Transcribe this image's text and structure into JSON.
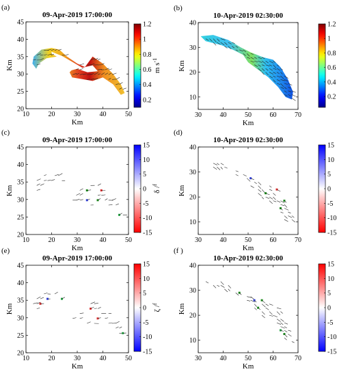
{
  "figure": {
    "panels": [
      {
        "label": "(a)",
        "title": "09-Apr-2019 17:00:00",
        "xlabel": "Km",
        "ylabel": "Km",
        "xlim": [
          10,
          50
        ],
        "ylim": [
          20,
          45
        ],
        "xticks": [
          "10",
          "20",
          "30",
          "40",
          "50"
        ],
        "yticks": [
          "20",
          "25",
          "30",
          "35",
          "40",
          "45"
        ],
        "field": "speed",
        "region": "A"
      },
      {
        "label": "(b)",
        "title": "10-Apr-2019 02:30:00",
        "xlabel": "Km",
        "ylabel": "Km",
        "xlim": [
          30,
          70
        ],
        "ylim": [
          5,
          40
        ],
        "xticks": [
          "30",
          "40",
          "50",
          "60",
          "70"
        ],
        "yticks": [
          "10",
          "20",
          "30",
          "40"
        ],
        "field": "speed",
        "region": "B"
      },
      {
        "label": "(c)",
        "title": "09-Apr-2019 17:00:00",
        "xlabel": "Km",
        "ylabel": "Km",
        "xlim": [
          10,
          50
        ],
        "ylim": [
          20,
          45
        ],
        "xticks": [
          "10",
          "20",
          "30",
          "40",
          "50"
        ],
        "yticks": [
          "20",
          "25",
          "30",
          "35",
          "40",
          "45"
        ],
        "field": "ratio",
        "region": "A"
      },
      {
        "label": "(d)",
        "title": "10-Apr-2019 02:30:00",
        "xlabel": "Km",
        "ylabel": "Km",
        "xlim": [
          30,
          70
        ],
        "ylim": [
          5,
          40
        ],
        "xticks": [
          "30",
          "40",
          "50",
          "60",
          "70"
        ],
        "yticks": [
          "10",
          "20",
          "30",
          "40"
        ],
        "field": "ratio",
        "region": "B"
      },
      {
        "label": "(e)",
        "title": "09-Apr-2019 17:00:00",
        "xlabel": "Km",
        "ylabel": "Km",
        "xlim": [
          10,
          50
        ],
        "ylim": [
          20,
          45
        ],
        "xticks": [
          "10",
          "20",
          "30",
          "40",
          "50"
        ],
        "yticks": [
          "20",
          "25",
          "30",
          "35",
          "40",
          "45"
        ],
        "field": "ratio",
        "region": "A"
      },
      {
        "label": "(f )",
        "title": "10-Apr-2019 02:30:00",
        "xlabel": "Km",
        "ylabel": "Km",
        "xlim": [
          30,
          70
        ],
        "ylim": [
          5,
          40
        ],
        "xticks": [
          "30",
          "40",
          "50",
          "60",
          "70"
        ],
        "yticks": [
          "10",
          "20",
          "30",
          "40"
        ],
        "field": "ratio",
        "region": "B"
      }
    ],
    "colorbars": [
      {
        "panel": "(a)",
        "label": "m s -1",
        "colormap": "jet",
        "range": [
          0.1,
          1.2
        ],
        "ticks": [
          "1.2",
          "1",
          "0.8",
          "0.6",
          "0.4",
          "0.2"
        ]
      },
      {
        "panel": "(b)",
        "label": "m s -1",
        "colormap": "jet",
        "range": [
          0.05,
          1.2
        ],
        "ticks": [
          "1.2",
          "1",
          "0.8",
          "0.6",
          "0.4",
          "0.2"
        ]
      },
      {
        "panel": "(c)",
        "label": "δ / f",
        "colormap": "red-white-blue",
        "range": [
          -15,
          15
        ],
        "ticks": [
          "15",
          "10",
          "5",
          "0",
          "-5",
          "-10",
          "-15"
        ]
      },
      {
        "panel": "(d)",
        "label": "δ / f",
        "colormap": "red-white-blue",
        "range": [
          -15,
          15
        ],
        "ticks": [
          "15",
          "10",
          "5",
          "0",
          "-5",
          "-10",
          "-15"
        ]
      },
      {
        "panel": "(e)",
        "label": "ζ / f",
        "colormap": "blue-white-red",
        "range": [
          -15,
          15
        ],
        "ticks": [
          "15",
          "10",
          "5",
          "0",
          "-5",
          "-10",
          "-15"
        ]
      },
      {
        "panel": "(f )",
        "label": "ζ / f",
        "colormap": "blue-white-red",
        "range": [
          -15,
          15
        ],
        "ticks": [
          "15",
          "10",
          "5",
          "0",
          "-5",
          "-10",
          "-15"
        ]
      }
    ]
  },
  "chart_data": [
    {
      "type": "heatmap",
      "panel": "(a)",
      "title": "09-Apr-2019 17:00:00",
      "xlabel": "Km",
      "ylabel": "Km",
      "xlim": [
        10,
        50
      ],
      "ylim": [
        20,
        45
      ],
      "colorbar": {
        "label": "m s -1",
        "range": [
          0.1,
          1.2
        ]
      },
      "coverage_outline_km": [
        [
          12.5,
          33
        ],
        [
          13,
          35
        ],
        [
          16,
          37
        ],
        [
          20,
          37.5
        ],
        [
          23,
          37
        ],
        [
          26,
          35
        ],
        [
          30,
          33
        ],
        [
          33,
          32
        ],
        [
          36,
          35
        ],
        [
          40,
          33
        ],
        [
          44,
          30
        ],
        [
          47,
          27
        ],
        [
          48.5,
          24.5
        ],
        [
          47,
          24
        ],
        [
          44,
          27
        ],
        [
          40,
          29
        ],
        [
          36,
          28
        ],
        [
          32,
          28.5
        ],
        [
          28,
          29
        ],
        [
          27,
          30.5
        ],
        [
          29,
          32
        ],
        [
          26,
          33.5
        ],
        [
          22,
          35
        ],
        [
          18,
          34.5
        ],
        [
          15,
          33
        ],
        [
          14,
          31.5
        ]
      ],
      "overlay": "current vectors"
    },
    {
      "type": "heatmap",
      "panel": "(b)",
      "title": "10-Apr-2019 02:30:00",
      "xlabel": "Km",
      "ylabel": "Km",
      "xlim": [
        30,
        70
      ],
      "ylim": [
        5,
        40
      ],
      "colorbar": {
        "label": "m s -1",
        "range": [
          0.05,
          1.2
        ]
      },
      "coverage_outline_km": [
        [
          31,
          34.5
        ],
        [
          36,
          35
        ],
        [
          42,
          33
        ],
        [
          47,
          30
        ],
        [
          51,
          28
        ],
        [
          56,
          26
        ],
        [
          60,
          25
        ],
        [
          63,
          22
        ],
        [
          66,
          17
        ],
        [
          68,
          12
        ],
        [
          67.5,
          9
        ],
        [
          65,
          10
        ],
        [
          62,
          14
        ],
        [
          58,
          18
        ],
        [
          54,
          21
        ],
        [
          50,
          24
        ],
        [
          48,
          27
        ],
        [
          44,
          29
        ],
        [
          39,
          31
        ],
        [
          33,
          32.5
        ]
      ],
      "overlay": "current vectors"
    },
    {
      "type": "heatmap",
      "panel": "(c)",
      "title": "09-Apr-2019 17:00:00",
      "xlabel": "Km",
      "ylabel": "Km",
      "xlim": [
        10,
        50
      ],
      "ylim": [
        20,
        45
      ],
      "colorbar": {
        "label": "δ / f",
        "range": [
          -15,
          15
        ]
      },
      "overlay": "current vectors",
      "field_note": "normalized divergence, mostly near zero"
    },
    {
      "type": "heatmap",
      "panel": "(d)",
      "title": "10-Apr-2019 02:30:00",
      "xlabel": "Km",
      "ylabel": "Km",
      "xlim": [
        30,
        70
      ],
      "ylim": [
        5,
        40
      ],
      "colorbar": {
        "label": "δ / f",
        "range": [
          -15,
          15
        ]
      },
      "overlay": "current vectors",
      "field_note": "normalized divergence, mostly near zero"
    },
    {
      "type": "heatmap",
      "panel": "(e)",
      "title": "09-Apr-2019 17:00:00",
      "xlabel": "Km",
      "ylabel": "Km",
      "xlim": [
        10,
        50
      ],
      "ylim": [
        20,
        45
      ],
      "colorbar": {
        "label": "ζ / f",
        "range": [
          -15,
          15
        ]
      },
      "overlay": "current vectors",
      "field_note": "normalized vorticity, mostly near zero"
    },
    {
      "type": "heatmap",
      "panel": "(f )",
      "title": "10-Apr-2019 02:30:00",
      "xlabel": "Km",
      "ylabel": "Km",
      "xlim": [
        30,
        70
      ],
      "ylim": [
        5,
        40
      ],
      "colorbar": {
        "label": "ζ / f",
        "range": [
          -15,
          15
        ]
      },
      "overlay": "current vectors",
      "field_note": "normalized vorticity, mostly near zero"
    }
  ]
}
